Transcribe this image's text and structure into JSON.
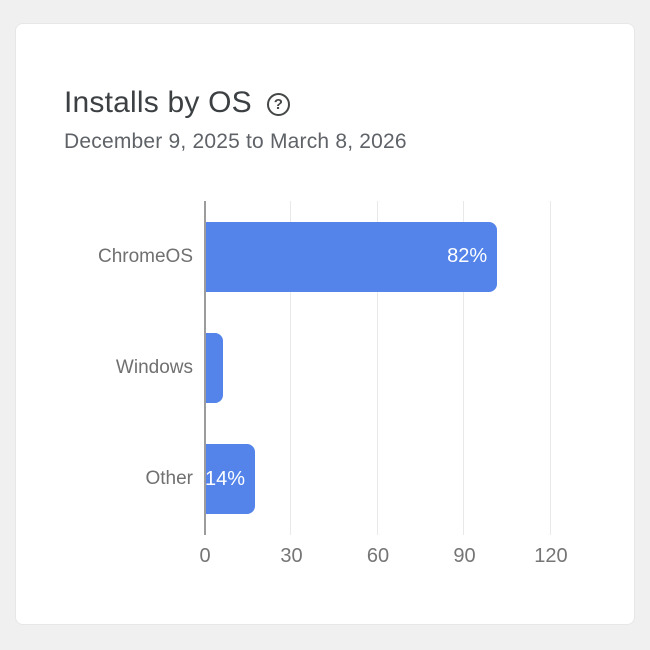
{
  "card": {
    "title": "Installs by OS",
    "help_glyph": "?",
    "date_range": "December 9, 2025 to March 8, 2026"
  },
  "chart_data": {
    "type": "bar",
    "orientation": "horizontal",
    "title": "Installs by OS",
    "subtitle": "December 9, 2025 to March 8, 2026",
    "categories": [
      "ChromeOS",
      "Windows",
      "Other"
    ],
    "values": [
      101,
      6,
      17
    ],
    "bar_labels": [
      "82%",
      "",
      "14%"
    ],
    "xticks": [
      0,
      30,
      60,
      90,
      120
    ],
    "xlim": [
      0,
      139
    ],
    "grid": true,
    "legend": "none",
    "bar_color": "#5484ea",
    "bar_label_color": "#ffffff"
  }
}
